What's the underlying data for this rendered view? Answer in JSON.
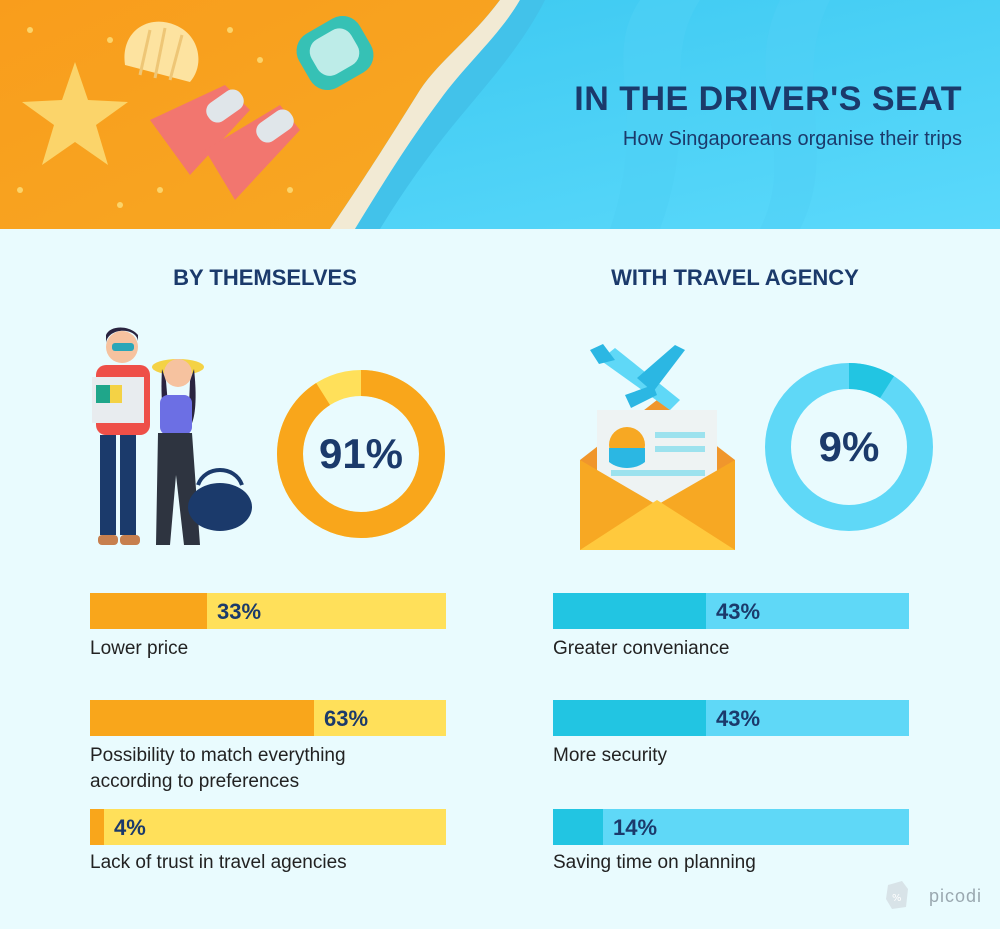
{
  "header": {
    "title": "IN THE DRIVER'S SEAT",
    "subtitle": "How Singaporeans organise their trips"
  },
  "brand": {
    "name": "picodi"
  },
  "colors": {
    "orange": "#f9a61b",
    "yellow": "#ffe05a",
    "cyan": "#22c5e2",
    "light_cyan": "#5fd8f7",
    "navy": "#1b3a6b",
    "background": "#e9fbfe"
  },
  "icons": [
    "couple-travelers-icon",
    "airplane-envelope-icon",
    "picodi-logo-icon"
  ],
  "chart_data": [
    {
      "type": "pie",
      "title": "BY THEMSELVES",
      "values": [
        91,
        9
      ],
      "center_label": "91%"
    },
    {
      "type": "pie",
      "title": "WITH TRAVEL AGENCY",
      "values": [
        9,
        91
      ],
      "center_label": "9%"
    },
    {
      "type": "bar",
      "group": "BY THEMSELVES",
      "categories": [
        "Lower price",
        "Possibility to match everything according to preferences",
        "Lack of trust in travel agencies"
      ],
      "values": [
        33,
        63,
        4
      ],
      "value_labels": [
        "33%",
        "63%",
        "4%"
      ],
      "xlim": [
        0,
        100
      ]
    },
    {
      "type": "bar",
      "group": "WITH TRAVEL AGENCY",
      "categories": [
        "Greater conveniance",
        "More security",
        "Saving time on planning"
      ],
      "values": [
        43,
        43,
        14
      ],
      "value_labels": [
        "43%",
        "43%",
        "14%"
      ],
      "xlim": [
        0,
        100
      ]
    }
  ]
}
